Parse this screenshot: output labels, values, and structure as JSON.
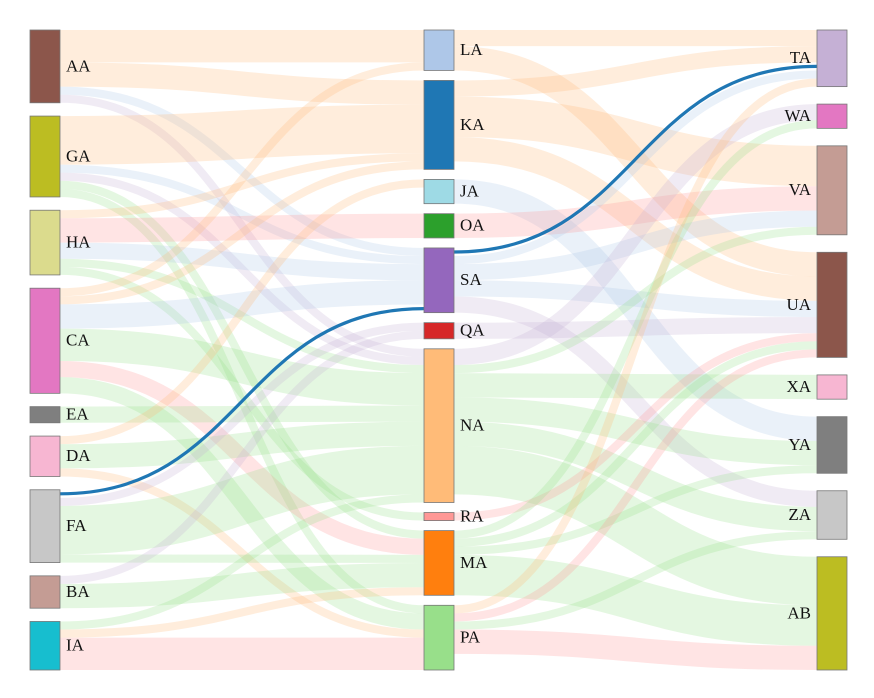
{
  "chart_data": {
    "type": "sankey",
    "columns": [
      [
        "AA",
        "GA",
        "HA",
        "CA",
        "EA",
        "DA",
        "FA",
        "BA",
        "IA"
      ],
      [
        "LA",
        "KA",
        "JA",
        "OA",
        "SA",
        "QA",
        "NA",
        "RA",
        "MA",
        "PA"
      ],
      [
        "TA",
        "WA",
        "VA",
        "UA",
        "XA",
        "YA",
        "ZA",
        "AB"
      ]
    ],
    "nodes": [
      {
        "id": "AA",
        "color": "#8c564b"
      },
      {
        "id": "GA",
        "color": "#bcbd22"
      },
      {
        "id": "HA",
        "color": "#dbdb8d"
      },
      {
        "id": "CA",
        "color": "#e377c2"
      },
      {
        "id": "EA",
        "color": "#7f7f7f"
      },
      {
        "id": "DA",
        "color": "#f7b6d2"
      },
      {
        "id": "FA",
        "color": "#c7c7c7"
      },
      {
        "id": "BA",
        "color": "#c49c94"
      },
      {
        "id": "IA",
        "color": "#17becf"
      },
      {
        "id": "LA",
        "color": "#aec7e8"
      },
      {
        "id": "KA",
        "color": "#1f77b4"
      },
      {
        "id": "JA",
        "color": "#9edae5"
      },
      {
        "id": "OA",
        "color": "#2ca02c"
      },
      {
        "id": "SA",
        "color": "#9467bd"
      },
      {
        "id": "QA",
        "color": "#d62728"
      },
      {
        "id": "NA",
        "color": "#ffbb78"
      },
      {
        "id": "RA",
        "color": "#ff9896"
      },
      {
        "id": "MA",
        "color": "#ff7f0e"
      },
      {
        "id": "PA",
        "color": "#98df8a"
      },
      {
        "id": "TA",
        "color": "#c5b0d5"
      },
      {
        "id": "WA",
        "color": "#e377c2"
      },
      {
        "id": "VA",
        "color": "#c49c94"
      },
      {
        "id": "UA",
        "color": "#8c564b"
      },
      {
        "id": "XA",
        "color": "#f7b6d2"
      },
      {
        "id": "YA",
        "color": "#7f7f7f"
      },
      {
        "id": "ZA",
        "color": "#c7c7c7"
      },
      {
        "id": "AB",
        "color": "#bcbd22"
      }
    ],
    "links": [
      {
        "source": "AA",
        "target": "LA",
        "value": 4,
        "color": "#ffbb78"
      },
      {
        "source": "AA",
        "target": "KA",
        "value": 3,
        "color": "#ffbb78"
      },
      {
        "source": "AA",
        "target": "SA",
        "value": 1,
        "color": "#aec7e8"
      },
      {
        "source": "AA",
        "target": "NA",
        "value": 1,
        "color": "#c5b0d5"
      },
      {
        "source": "GA",
        "target": "KA",
        "value": 6,
        "color": "#ffbb78"
      },
      {
        "source": "GA",
        "target": "SA",
        "value": 1,
        "color": "#aec7e8"
      },
      {
        "source": "GA",
        "target": "NA",
        "value": 1,
        "color": "#c5b0d5"
      },
      {
        "source": "GA",
        "target": "MA",
        "value": 1,
        "color": "#98df8a"
      },
      {
        "source": "GA",
        "target": "PA",
        "value": 1,
        "color": "#98df8a"
      },
      {
        "source": "HA",
        "target": "KA",
        "value": 1,
        "color": "#ffbb78"
      },
      {
        "source": "HA",
        "target": "OA",
        "value": 3,
        "color": "#ff9896"
      },
      {
        "source": "HA",
        "target": "SA",
        "value": 2,
        "color": "#aec7e8"
      },
      {
        "source": "HA",
        "target": "NA",
        "value": 1,
        "color": "#98df8a"
      },
      {
        "source": "HA",
        "target": "RA",
        "value": 1,
        "color": "#98df8a"
      },
      {
        "source": "CA",
        "target": "LA",
        "value": 1,
        "color": "#ffbb78"
      },
      {
        "source": "CA",
        "target": "KA",
        "value": 1,
        "color": "#ffbb78"
      },
      {
        "source": "CA",
        "target": "SA",
        "value": 3,
        "color": "#aec7e8"
      },
      {
        "source": "CA",
        "target": "NA",
        "value": 4,
        "color": "#98df8a"
      },
      {
        "source": "CA",
        "target": "MA",
        "value": 2,
        "color": "#ff9896"
      },
      {
        "source": "CA",
        "target": "PA",
        "value": 2,
        "color": "#98df8a"
      },
      {
        "source": "EA",
        "target": "NA",
        "value": 2,
        "color": "#98df8a"
      },
      {
        "source": "DA",
        "target": "JA",
        "value": 1,
        "color": "#ffbb78"
      },
      {
        "source": "DA",
        "target": "NA",
        "value": 3,
        "color": "#98df8a"
      },
      {
        "source": "DA",
        "target": "PA",
        "value": 1,
        "color": "#ffbb78"
      },
      {
        "source": "FA",
        "target": "SA",
        "value": 1,
        "color": "#1f77b4",
        "highlight": true
      },
      {
        "source": "FA",
        "target": "NA",
        "value": 6,
        "color": "#98df8a"
      },
      {
        "source": "FA",
        "target": "QA",
        "value": 1,
        "color": "#c5b0d5"
      },
      {
        "source": "FA",
        "target": "MA",
        "value": 1,
        "color": "#98df8a"
      },
      {
        "source": "BA",
        "target": "MA",
        "value": 3,
        "color": "#98df8a"
      },
      {
        "source": "BA",
        "target": "QA",
        "value": 1,
        "color": "#c5b0d5"
      },
      {
        "source": "IA",
        "target": "PA",
        "value": 4,
        "color": "#ff9896"
      },
      {
        "source": "IA",
        "target": "NA",
        "value": 1,
        "color": "#98df8a"
      },
      {
        "source": "IA",
        "target": "MA",
        "value": 1,
        "color": "#ffbb78"
      },
      {
        "source": "LA",
        "target": "TA",
        "value": 2,
        "color": "#ffbb78"
      },
      {
        "source": "LA",
        "target": "UA",
        "value": 3,
        "color": "#ffbb78"
      },
      {
        "source": "KA",
        "target": "TA",
        "value": 2,
        "color": "#ffbb78"
      },
      {
        "source": "KA",
        "target": "VA",
        "value": 5,
        "color": "#ffbb78"
      },
      {
        "source": "KA",
        "target": "UA",
        "value": 3,
        "color": "#ffbb78"
      },
      {
        "source": "JA",
        "target": "YA",
        "value": 3,
        "color": "#aec7e8"
      },
      {
        "source": "OA",
        "target": "VA",
        "value": 3,
        "color": "#ff9896"
      },
      {
        "source": "SA",
        "target": "TA",
        "value": 1,
        "color": "#1f77b4",
        "highlight": true
      },
      {
        "source": "SA",
        "target": "TA",
        "value": 1,
        "color": "#aec7e8"
      },
      {
        "source": "SA",
        "target": "VA",
        "value": 2,
        "color": "#aec7e8"
      },
      {
        "source": "SA",
        "target": "UA",
        "value": 2,
        "color": "#aec7e8"
      },
      {
        "source": "SA",
        "target": "ZA",
        "value": 2,
        "color": "#c5b0d5"
      },
      {
        "source": "QA",
        "target": "UA",
        "value": 2,
        "color": "#c5b0d5"
      },
      {
        "source": "NA",
        "target": "WA",
        "value": 2,
        "color": "#c5b0d5"
      },
      {
        "source": "NA",
        "target": "VA",
        "value": 1,
        "color": "#98df8a"
      },
      {
        "source": "NA",
        "target": "XA",
        "value": 3,
        "color": "#98df8a"
      },
      {
        "source": "NA",
        "target": "YA",
        "value": 3,
        "color": "#98df8a"
      },
      {
        "source": "NA",
        "target": "ZA",
        "value": 3,
        "color": "#98df8a"
      },
      {
        "source": "NA",
        "target": "AB",
        "value": 6,
        "color": "#98df8a"
      },
      {
        "source": "RA",
        "target": "UA",
        "value": 1,
        "color": "#ff9896"
      },
      {
        "source": "MA",
        "target": "WA",
        "value": 1,
        "color": "#98df8a"
      },
      {
        "source": "MA",
        "target": "UA",
        "value": 1,
        "color": "#98df8a"
      },
      {
        "source": "MA",
        "target": "YA",
        "value": 1,
        "color": "#98df8a"
      },
      {
        "source": "MA",
        "target": "AB",
        "value": 5,
        "color": "#98df8a"
      },
      {
        "source": "PA",
        "target": "TA",
        "value": 1,
        "color": "#ffbb78"
      },
      {
        "source": "PA",
        "target": "UA",
        "value": 1,
        "color": "#ff9896"
      },
      {
        "source": "PA",
        "target": "ZA",
        "value": 1,
        "color": "#98df8a"
      },
      {
        "source": "PA",
        "target": "AB",
        "value": 3,
        "color": "#ff9896"
      }
    ]
  }
}
